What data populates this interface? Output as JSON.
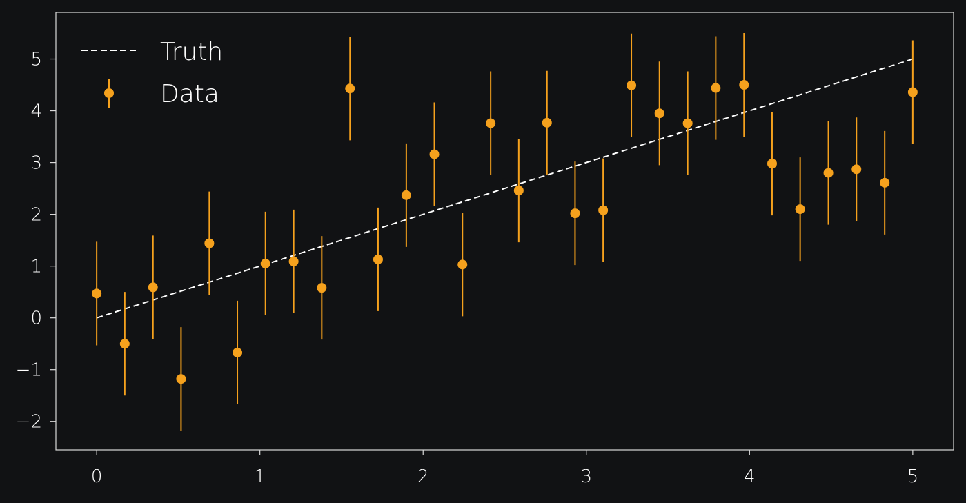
{
  "theme": {
    "background": "#111214",
    "axes_color": "#d9d9d9",
    "text_color": "#ffffff",
    "data_color": "#f5a11d",
    "truth_color": "#ffffff"
  },
  "chart_data": {
    "type": "scatter",
    "title": "",
    "xlabel": "",
    "ylabel": "",
    "xlim": [
      -0.25,
      5.25
    ],
    "ylim": [
      -2.55,
      5.9
    ],
    "xticks": [
      0,
      1,
      2,
      3,
      4,
      5
    ],
    "yticks": [
      -2,
      -1,
      0,
      1,
      2,
      3,
      4,
      5
    ],
    "grid": false,
    "legend": {
      "position": "upper-left",
      "entries": [
        {
          "label": "Truth",
          "style": "dashed-line"
        },
        {
          "label": "Data",
          "style": "errorbar-marker"
        }
      ]
    },
    "truth_line": {
      "name": "Truth",
      "x": [
        0,
        5
      ],
      "y": [
        0,
        5
      ]
    },
    "series": [
      {
        "name": "Data",
        "yerr": 1.0,
        "x": [
          0,
          0.172,
          0.345,
          0.517,
          0.69,
          0.862,
          1.034,
          1.207,
          1.379,
          1.552,
          1.724,
          1.897,
          2.069,
          2.241,
          2.414,
          2.586,
          2.759,
          2.931,
          3.103,
          3.276,
          3.448,
          3.621,
          3.793,
          3.966,
          4.138,
          4.31,
          4.483,
          4.655,
          4.828,
          5.0
        ],
        "y": [
          0.47,
          -0.5,
          0.59,
          -1.18,
          1.44,
          -0.67,
          1.05,
          1.09,
          0.58,
          4.43,
          1.13,
          2.37,
          3.16,
          1.03,
          3.76,
          2.46,
          3.77,
          2.02,
          2.08,
          4.49,
          3.95,
          3.76,
          4.44,
          4.5,
          2.98,
          2.1,
          2.8,
          2.87,
          2.61,
          4.36
        ]
      }
    ]
  }
}
